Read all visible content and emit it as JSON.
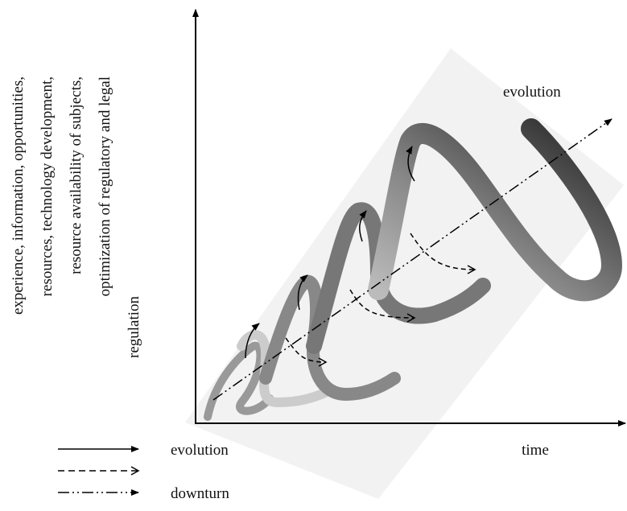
{
  "axes": {
    "y_label": [
      "experience, information, opportunities,",
      "resources, technology development,",
      "resource availability of subjects,",
      "optimization of regulatory and legal",
      "regulation"
    ],
    "x_label": "time"
  },
  "annotations": {
    "trend_label": "evolution"
  },
  "legend": [
    "evolution",
    "downturn"
  ]
}
